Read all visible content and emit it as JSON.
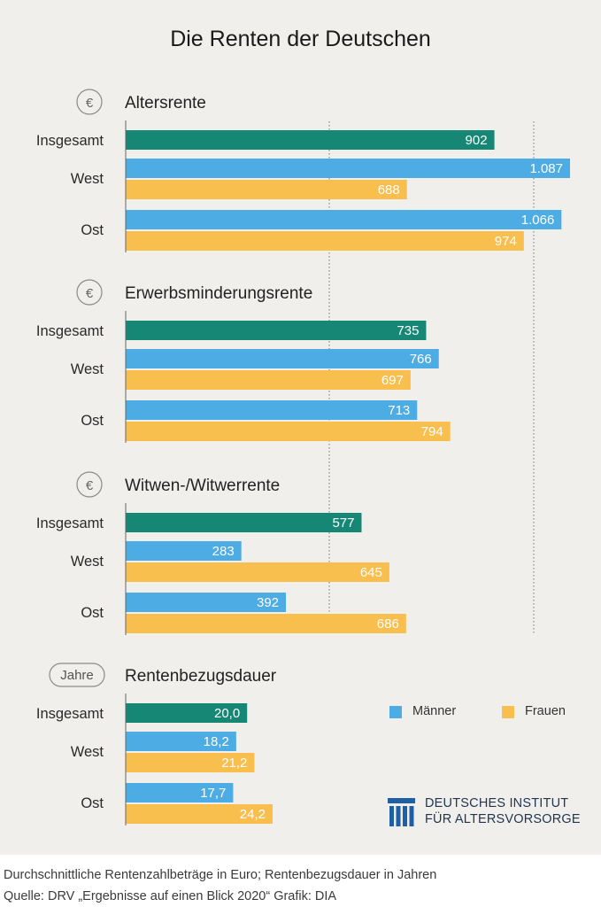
{
  "title": "Die Renten der Deutschen",
  "colors": {
    "insgesamt": "#168775",
    "maenner": "#4dace3",
    "frauen": "#f8be4e",
    "background": "#f1efec",
    "logo": "#1f5fa6"
  },
  "legend": {
    "maenner": "Männer",
    "frauen": "Frauen"
  },
  "logo": {
    "line1": "DEUTSCHES INSTITUT",
    "line2": "FÜR ALTERSVORSORGE"
  },
  "footnote": {
    "line1": "Durchschnittliche Rentenzahlbeträge in Euro; Rentenbezugsdauer in Jahren",
    "line2": "Quelle: DRV „Ergebnisse auf einen Blick 2020“   Grafik: DIA"
  },
  "chart_data": [
    {
      "type": "bar",
      "title": "Altersrente",
      "badge": "€",
      "unit": "Euro",
      "categories": [
        "Insgesamt",
        "West",
        "Ost"
      ],
      "bars": [
        {
          "category": "Insgesamt",
          "series": "insgesamt",
          "value": 902,
          "label": "902"
        },
        {
          "category": "West",
          "series": "maenner",
          "value": 1087,
          "label": "1.087"
        },
        {
          "category": "West",
          "series": "frauen",
          "value": 688,
          "label": "688"
        },
        {
          "category": "Ost",
          "series": "maenner",
          "value": 1066,
          "label": "1.066"
        },
        {
          "category": "Ost",
          "series": "frauen",
          "value": 974,
          "label": "974"
        }
      ]
    },
    {
      "type": "bar",
      "title": "Erwerbsminderungsrente",
      "badge": "€",
      "unit": "Euro",
      "categories": [
        "Insgesamt",
        "West",
        "Ost"
      ],
      "bars": [
        {
          "category": "Insgesamt",
          "series": "insgesamt",
          "value": 735,
          "label": "735"
        },
        {
          "category": "West",
          "series": "maenner",
          "value": 766,
          "label": "766"
        },
        {
          "category": "West",
          "series": "frauen",
          "value": 697,
          "label": "697"
        },
        {
          "category": "Ost",
          "series": "maenner",
          "value": 713,
          "label": "713"
        },
        {
          "category": "Ost",
          "series": "frauen",
          "value": 794,
          "label": "794"
        }
      ]
    },
    {
      "type": "bar",
      "title": "Witwen-/Witwerrente",
      "badge": "€",
      "unit": "Euro",
      "categories": [
        "Insgesamt",
        "West",
        "Ost"
      ],
      "bars": [
        {
          "category": "Insgesamt",
          "series": "insgesamt",
          "value": 577,
          "label": "577"
        },
        {
          "category": "West",
          "series": "maenner",
          "value": 283,
          "label": "283"
        },
        {
          "category": "West",
          "series": "frauen",
          "value": 645,
          "label": "645"
        },
        {
          "category": "Ost",
          "series": "maenner",
          "value": 392,
          "label": "392"
        },
        {
          "category": "Ost",
          "series": "frauen",
          "value": 686,
          "label": "686"
        }
      ]
    },
    {
      "type": "bar",
      "title": "Rentenbezugsdauer",
      "badge": "Jahre",
      "unit": "Jahre",
      "categories": [
        "Insgesamt",
        "West",
        "Ost"
      ],
      "bars": [
        {
          "category": "Insgesamt",
          "series": "insgesamt",
          "value": 20.0,
          "label": "20,0"
        },
        {
          "category": "West",
          "series": "maenner",
          "value": 18.2,
          "label": "18,2"
        },
        {
          "category": "West",
          "series": "frauen",
          "value": 21.2,
          "label": "21,2"
        },
        {
          "category": "Ost",
          "series": "maenner",
          "value": 17.7,
          "label": "17,7"
        },
        {
          "category": "Ost",
          "series": "frauen",
          "value": 24.2,
          "label": "24,2"
        }
      ]
    }
  ]
}
